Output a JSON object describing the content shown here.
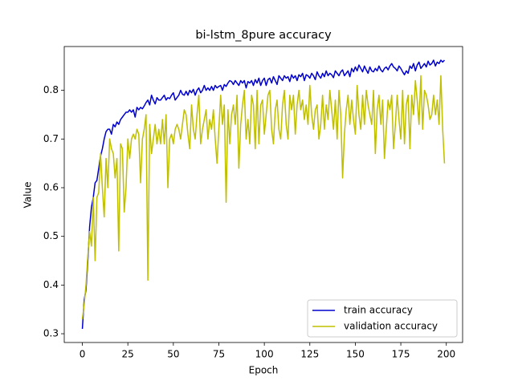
{
  "chart_data": {
    "type": "line",
    "title": "bi-lstm_8pure accuracy",
    "x_label": "Epoch",
    "y_label": "Value",
    "x": [
      0,
      1,
      2,
      3,
      4,
      5,
      6,
      7,
      8,
      9,
      10,
      11,
      12,
      13,
      14,
      15,
      16,
      17,
      18,
      19,
      20,
      21,
      22,
      23,
      24,
      25,
      26,
      27,
      28,
      29,
      30,
      31,
      32,
      33,
      34,
      35,
      36,
      37,
      38,
      39,
      40,
      41,
      42,
      43,
      44,
      45,
      46,
      47,
      48,
      49,
      50,
      51,
      52,
      53,
      54,
      55,
      56,
      57,
      58,
      59,
      60,
      61,
      62,
      63,
      64,
      65,
      66,
      67,
      68,
      69,
      70,
      71,
      72,
      73,
      74,
      75,
      76,
      77,
      78,
      79,
      80,
      81,
      82,
      83,
      84,
      85,
      86,
      87,
      88,
      89,
      90,
      91,
      92,
      93,
      94,
      95,
      96,
      97,
      98,
      99,
      100,
      101,
      102,
      103,
      104,
      105,
      106,
      107,
      108,
      109,
      110,
      111,
      112,
      113,
      114,
      115,
      116,
      117,
      118,
      119,
      120,
      121,
      122,
      123,
      124,
      125,
      126,
      127,
      128,
      129,
      130,
      131,
      132,
      133,
      134,
      135,
      136,
      137,
      138,
      139,
      140,
      141,
      142,
      143,
      144,
      145,
      146,
      147,
      148,
      149,
      150,
      151,
      152,
      153,
      154,
      155,
      156,
      157,
      158,
      159,
      160,
      161,
      162,
      163,
      164,
      165,
      166,
      167,
      168,
      169,
      170,
      171,
      172,
      173,
      174,
      175,
      176,
      177,
      178,
      179,
      180,
      181,
      182,
      183,
      184,
      185,
      186,
      187,
      188,
      189,
      190,
      191,
      192,
      193,
      194,
      195,
      196,
      197,
      198,
      199
    ],
    "series": [
      {
        "name": "train accuracy",
        "color": "#0000cd",
        "values": [
          0.31,
          0.37,
          0.39,
          0.45,
          0.52,
          0.56,
          0.58,
          0.61,
          0.615,
          0.64,
          0.665,
          0.68,
          0.7,
          0.715,
          0.72,
          0.72,
          0.71,
          0.73,
          0.725,
          0.735,
          0.73,
          0.74,
          0.745,
          0.75,
          0.755,
          0.755,
          0.76,
          0.755,
          0.76,
          0.745,
          0.765,
          0.76,
          0.765,
          0.762,
          0.768,
          0.775,
          0.78,
          0.77,
          0.79,
          0.78,
          0.772,
          0.785,
          0.78,
          0.78,
          0.785,
          0.79,
          0.78,
          0.785,
          0.783,
          0.79,
          0.795,
          0.78,
          0.785,
          0.79,
          0.8,
          0.792,
          0.79,
          0.798,
          0.79,
          0.8,
          0.795,
          0.802,
          0.79,
          0.8,
          0.805,
          0.795,
          0.8,
          0.81,
          0.8,
          0.805,
          0.8,
          0.808,
          0.8,
          0.81,
          0.805,
          0.808,
          0.81,
          0.8,
          0.812,
          0.808,
          0.815,
          0.82,
          0.818,
          0.812,
          0.82,
          0.815,
          0.81,
          0.82,
          0.815,
          0.82,
          0.805,
          0.818,
          0.815,
          0.82,
          0.81,
          0.822,
          0.815,
          0.825,
          0.81,
          0.82,
          0.825,
          0.81,
          0.822,
          0.825,
          0.815,
          0.828,
          0.82,
          0.812,
          0.83,
          0.825,
          0.82,
          0.83,
          0.825,
          0.828,
          0.818,
          0.832,
          0.825,
          0.83,
          0.82,
          0.832,
          0.828,
          0.835,
          0.82,
          0.832,
          0.83,
          0.825,
          0.835,
          0.83,
          0.822,
          0.838,
          0.83,
          0.825,
          0.835,
          0.828,
          0.84,
          0.83,
          0.835,
          0.832,
          0.826,
          0.84,
          0.835,
          0.83,
          0.838,
          0.842,
          0.83,
          0.835,
          0.84,
          0.828,
          0.845,
          0.838,
          0.848,
          0.84,
          0.852,
          0.845,
          0.838,
          0.85,
          0.842,
          0.835,
          0.848,
          0.84,
          0.838,
          0.845,
          0.84,
          0.85,
          0.842,
          0.838,
          0.845,
          0.848,
          0.842,
          0.85,
          0.855,
          0.848,
          0.845,
          0.84,
          0.85,
          0.845,
          0.838,
          0.832,
          0.84,
          0.835,
          0.85,
          0.845,
          0.855,
          0.84,
          0.852,
          0.858,
          0.845,
          0.85,
          0.855,
          0.848,
          0.86,
          0.852,
          0.855,
          0.862,
          0.85,
          0.858,
          0.855,
          0.862,
          0.858,
          0.862
        ]
      },
      {
        "name": "validation accuracy",
        "color": "#bfbf00",
        "values": [
          0.33,
          0.36,
          0.4,
          0.46,
          0.51,
          0.48,
          0.58,
          0.45,
          0.58,
          0.59,
          0.67,
          0.6,
          0.54,
          0.66,
          0.6,
          0.7,
          0.68,
          0.67,
          0.62,
          0.66,
          0.47,
          0.69,
          0.68,
          0.55,
          0.6,
          0.7,
          0.66,
          0.7,
          0.71,
          0.7,
          0.72,
          0.71,
          0.61,
          0.7,
          0.72,
          0.75,
          0.41,
          0.73,
          0.67,
          0.7,
          0.73,
          0.69,
          0.72,
          0.69,
          0.74,
          0.69,
          0.75,
          0.6,
          0.7,
          0.71,
          0.69,
          0.72,
          0.73,
          0.72,
          0.7,
          0.73,
          0.76,
          0.75,
          0.71,
          0.68,
          0.77,
          0.72,
          0.7,
          0.75,
          0.79,
          0.69,
          0.72,
          0.74,
          0.76,
          0.7,
          0.74,
          0.72,
          0.76,
          0.7,
          0.65,
          0.72,
          0.79,
          0.73,
          0.77,
          0.57,
          0.76,
          0.69,
          0.75,
          0.77,
          0.73,
          0.79,
          0.64,
          0.73,
          0.77,
          0.8,
          0.7,
          0.74,
          0.69,
          0.79,
          0.77,
          0.68,
          0.8,
          0.69,
          0.77,
          0.78,
          0.71,
          0.75,
          0.79,
          0.8,
          0.72,
          0.69,
          0.76,
          0.78,
          0.72,
          0.7,
          0.77,
          0.8,
          0.73,
          0.7,
          0.79,
          0.76,
          0.79,
          0.71,
          0.77,
          0.8,
          0.76,
          0.78,
          0.74,
          0.77,
          0.73,
          0.81,
          0.75,
          0.72,
          0.76,
          0.77,
          0.7,
          0.73,
          0.79,
          0.72,
          0.77,
          0.74,
          0.8,
          0.76,
          0.72,
          0.78,
          0.7,
          0.8,
          0.75,
          0.62,
          0.71,
          0.76,
          0.79,
          0.73,
          0.78,
          0.74,
          0.71,
          0.81,
          0.75,
          0.72,
          0.79,
          0.73,
          0.8,
          0.77,
          0.75,
          0.73,
          0.8,
          0.67,
          0.76,
          0.79,
          0.73,
          0.78,
          0.66,
          0.72,
          0.78,
          0.76,
          0.79,
          0.68,
          0.73,
          0.79,
          0.74,
          0.7,
          0.8,
          0.69,
          0.77,
          0.79,
          0.68,
          0.79,
          0.75,
          0.82,
          0.78,
          0.73,
          0.83,
          0.72,
          0.8,
          0.79,
          0.77,
          0.74,
          0.75,
          0.79,
          0.75,
          0.78,
          0.73,
          0.83,
          0.72,
          0.65
        ]
      }
    ],
    "xlim": [
      -9.95,
      208.95
    ],
    "ylim": [
      0.282,
      0.89
    ],
    "xticks": [
      0,
      25,
      50,
      75,
      100,
      125,
      150,
      175,
      200
    ],
    "yticks": [
      0.3,
      0.4,
      0.5,
      0.6,
      0.7,
      0.8
    ],
    "legend": "lower right"
  }
}
